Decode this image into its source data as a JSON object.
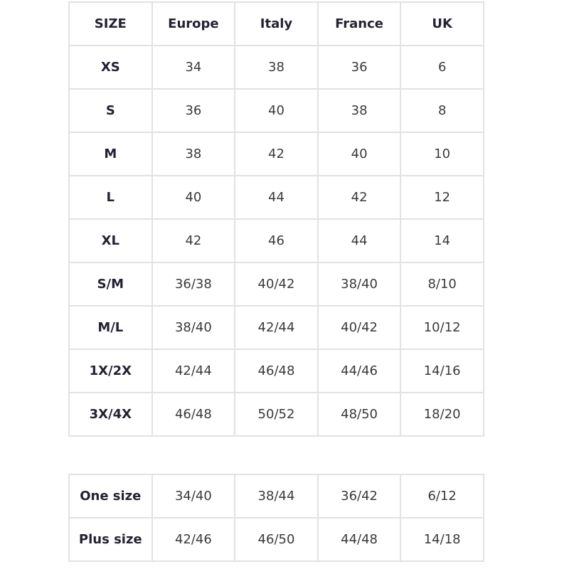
{
  "size_table": {
    "headers": [
      "SIZE",
      "Europe",
      "Italy",
      "France",
      "UK"
    ],
    "rows": [
      [
        "XS",
        "34",
        "38",
        "36",
        "6"
      ],
      [
        "S",
        "36",
        "40",
        "38",
        "8"
      ],
      [
        "M",
        "38",
        "42",
        "40",
        "10"
      ],
      [
        "L",
        "40",
        "44",
        "42",
        "12"
      ],
      [
        "XL",
        "42",
        "46",
        "44",
        "14"
      ],
      [
        "S/M",
        "36/38",
        "40/42",
        "38/40",
        "8/10"
      ],
      [
        "M/L",
        "38/40",
        "42/44",
        "40/42",
        "10/12"
      ],
      [
        "1X/2X",
        "42/44",
        "46/48",
        "44/46",
        "14/16"
      ],
      [
        "3X/4X",
        "46/48",
        "50/52",
        "48/50",
        "18/20"
      ]
    ]
  },
  "general_table": {
    "rows": [
      [
        "One size",
        "34/40",
        "38/44",
        "36/42",
        "6/12"
      ],
      [
        "Plus size",
        "42/46",
        "46/50",
        "44/48",
        "14/18"
      ]
    ]
  }
}
